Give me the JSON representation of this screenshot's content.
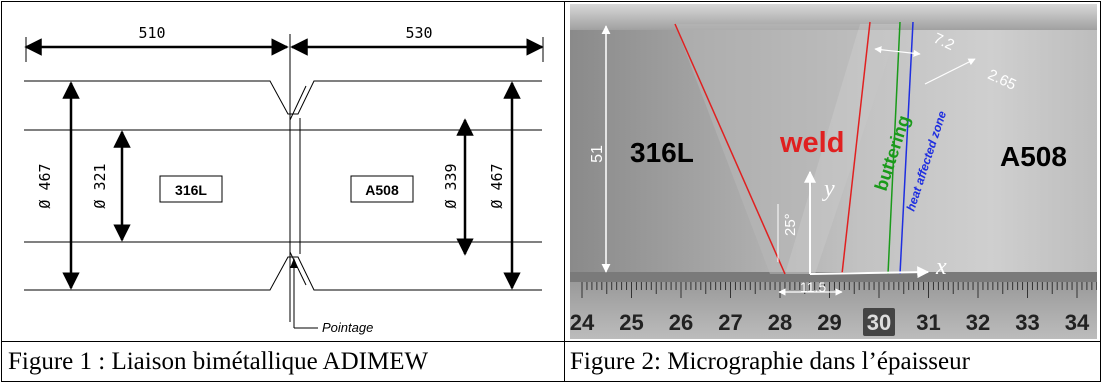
{
  "figure1": {
    "dim_left": "510",
    "dim_right": "530",
    "dia_outer_left": "Ø 467",
    "dia_inner_left": "Ø 321",
    "dia_inner_right": "Ø 339",
    "dia_outer_right": "Ø 467",
    "material_left": "316L",
    "material_right": "A508",
    "annotation": "Pointage",
    "caption": "Figure 1 : Liaison bimétallique ADIMEW"
  },
  "figure2": {
    "label_316L": "316L",
    "label_weld": "weld",
    "label_A508": "A508",
    "label_buttering": "buttering",
    "label_haz": "heat affected zone",
    "dim_51": "51",
    "dim_72": "7.2",
    "dim_265": "2.65",
    "angle": "25°",
    "axis_y": "y",
    "axis_x": "x",
    "dim_115": "11.5",
    "ruler_numbers": [
      "24",
      "25",
      "26",
      "27",
      "28",
      "29",
      "30",
      "31",
      "32",
      "33",
      "34"
    ],
    "caption": "Figure 2: Micrographie dans l’épaisseur",
    "colors": {
      "red": "#e02020",
      "green": "#1a9a1a",
      "blue": "#1e2ee0"
    }
  }
}
